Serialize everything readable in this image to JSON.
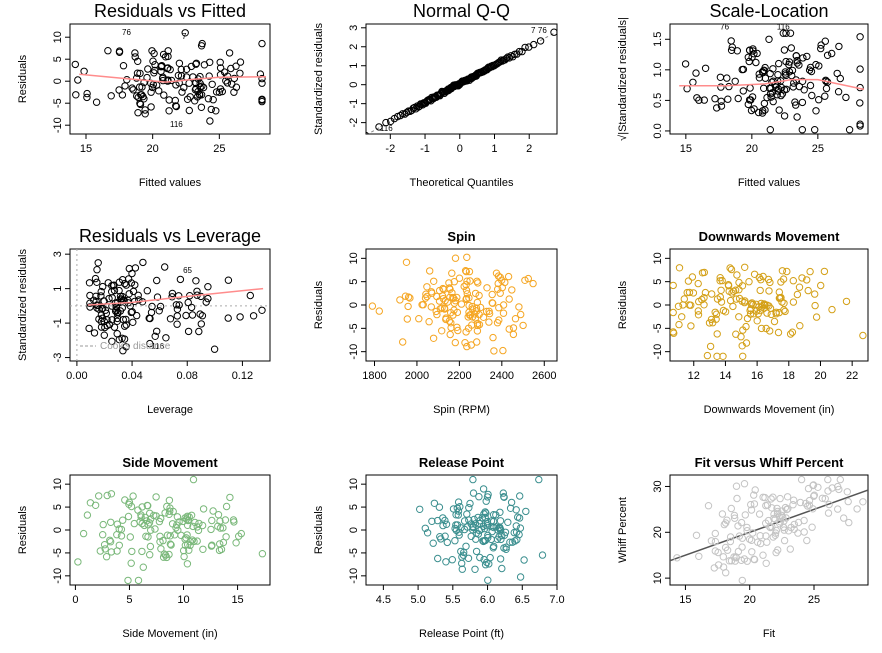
{
  "chart_data": [
    {
      "type": "scatter",
      "title": "Residuals vs Fitted",
      "xlabel": "Fitted values",
      "ylabel": "Residuals",
      "xlim": [
        13.8,
        28.8
      ],
      "ylim": [
        -12,
        13
      ],
      "xticks": [
        15,
        20,
        25
      ],
      "yticks": [
        -10,
        -5,
        0,
        5,
        10
      ],
      "point_color": "#000000",
      "smooth_color": "#ff8c8c",
      "smooth": {
        "x": [
          14.5,
          18,
          21,
          23,
          25,
          28.5
        ],
        "y": [
          1.6,
          0.6,
          -0.2,
          0.4,
          0.9,
          1.0
        ]
      },
      "annotations": [
        {
          "x": 17.7,
          "y": 10.5,
          "text": "76"
        },
        {
          "x": 22.2,
          "y": 9.6,
          "text": "7"
        },
        {
          "x": 21.3,
          "y": -10.4,
          "text": "116"
        }
      ],
      "gen": {
        "n": 150,
        "seed": 11,
        "xmean": 21.8,
        "xsd": 3.0,
        "ysd": 4.3,
        "xlo": 14.2,
        "xhi": 28.2,
        "ylo": -11,
        "yhi": 11
      }
    },
    {
      "type": "scatter",
      "title": "Normal Q-Q",
      "xlabel": "Theoretical Quantiles",
      "ylabel": "Standardized residuals",
      "xlim": [
        -2.7,
        2.8
      ],
      "ylim": [
        -2.6,
        3.2
      ],
      "xticks": [
        -2,
        -1,
        0,
        1,
        2
      ],
      "yticks": [
        -2,
        -1,
        0,
        1,
        2,
        3
      ],
      "point_color": "#000000",
      "refline": {
        "x": [
          -2.7,
          2.8
        ],
        "y": [
          -2.65,
          2.8
        ],
        "dash": true
      },
      "annotations": [
        {
          "x": 2.05,
          "y": 2.72,
          "text": "7"
        },
        {
          "x": 2.25,
          "y": 2.72,
          "text": "76"
        },
        {
          "x": -2.3,
          "y": -2.45,
          "text": "116"
        }
      ],
      "gen": {
        "n": 150,
        "seed": 3,
        "qq": true
      }
    },
    {
      "type": "scatter",
      "title": "Scale-Location",
      "xlabel": "Fitted values",
      "ylabel": "√|Standardized residuals|",
      "xlim": [
        13.8,
        28.8
      ],
      "ylim": [
        -0.05,
        1.75
      ],
      "xticks": [
        15,
        20,
        25
      ],
      "yticks": [
        0.0,
        0.5,
        1.0,
        1.5
      ],
      "point_color": "#000000",
      "smooth_color": "#ff8c8c",
      "smooth": {
        "x": [
          14.5,
          18,
          21,
          23,
          25,
          28.5
        ],
        "y": [
          0.74,
          0.74,
          0.77,
          0.84,
          0.84,
          0.68
        ]
      },
      "annotations": [
        {
          "x": 17.6,
          "y": 1.66,
          "text": "76"
        },
        {
          "x": 21.9,
          "y": 1.66,
          "text": "116"
        }
      ],
      "gen": {
        "n": 150,
        "seed": 17,
        "xmean": 21.8,
        "xsd": 3.0,
        "ymean": 0.8,
        "ysd": 0.35,
        "xlo": 14.2,
        "xhi": 28.2,
        "ylo": 0.02,
        "yhi": 1.6
      }
    },
    {
      "type": "scatter",
      "title": "Residuals vs Leverage",
      "xlabel": "Leverage",
      "ylabel": "Standardized residuals",
      "xlim": [
        -0.005,
        0.14
      ],
      "ylim": [
        -3.2,
        3.3
      ],
      "xticks": [
        0.0,
        0.04,
        0.08,
        0.12
      ],
      "yticks": [
        -3,
        -1,
        1,
        3
      ],
      "point_color": "#000000",
      "smooth_color": "#ff8c8c",
      "smooth": {
        "x": [
          0.008,
          0.04,
          0.08,
          0.135
        ],
        "y": [
          0.05,
          0.2,
          0.55,
          1.0
        ]
      },
      "annotations": [
        {
          "x": 0.077,
          "y": 1.9,
          "text": "65"
        },
        {
          "x": 0.054,
          "y": -2.5,
          "text": "116"
        }
      ],
      "legend": {
        "text": "Cook's distance",
        "position": "bottom-left"
      },
      "gen": {
        "n": 150,
        "seed": 23,
        "lev": true
      }
    },
    {
      "type": "scatter",
      "title": "Spin",
      "xlabel": "Spin (RPM)",
      "ylabel": "Residuals",
      "xlim": [
        1760,
        2660
      ],
      "ylim": [
        -12,
        12
      ],
      "xticks": [
        1800,
        2000,
        2200,
        2400,
        2600
      ],
      "yticks": [
        -10,
        -5,
        0,
        5,
        10
      ],
      "point_color": "#f5a623",
      "gen": {
        "n": 150,
        "seed": 5,
        "xmean": 2260,
        "xsd": 150,
        "ysd": 4.3,
        "xlo": 1790,
        "xhi": 2650,
        "ylo": -11,
        "yhi": 11
      }
    },
    {
      "type": "scatter",
      "title": "Downwards Movement",
      "xlabel": "Downwards Movement (in)",
      "ylabel": "Residuals",
      "xlim": [
        10.5,
        23
      ],
      "ylim": [
        -12,
        12
      ],
      "xticks": [
        12,
        14,
        16,
        18,
        20,
        22
      ],
      "yticks": [
        -10,
        -5,
        0,
        5,
        10
      ],
      "point_color": "#d4a017",
      "gen": {
        "n": 150,
        "seed": 7,
        "xmean": 15.2,
        "xsd": 2.4,
        "ysd": 4.3,
        "xlo": 10.7,
        "xhi": 22.8,
        "ylo": -11,
        "yhi": 11
      }
    },
    {
      "type": "scatter",
      "title": "Side Movement",
      "xlabel": "Side Movement (in)",
      "ylabel": "Residuals",
      "xlim": [
        -0.5,
        18
      ],
      "ylim": [
        -12,
        12
      ],
      "xticks": [
        0,
        5,
        10,
        15
      ],
      "yticks": [
        -10,
        -5,
        0,
        5,
        10
      ],
      "point_color": "#7ab87a",
      "gen": {
        "n": 150,
        "seed": 9,
        "xmean": 8,
        "xsd": 3.7,
        "ysd": 4.3,
        "xlo": 0,
        "xhi": 17.5,
        "ylo": -11,
        "yhi": 11
      }
    },
    {
      "type": "scatter",
      "title": "Release Point",
      "xlabel": "Release Point (ft)",
      "ylabel": "Residuals",
      "xlim": [
        4.25,
        7.0
      ],
      "ylim": [
        -12,
        12
      ],
      "xticks": [
        4.5,
        5.0,
        5.5,
        6.0,
        6.5,
        7.0
      ],
      "yticks": [
        -10,
        -5,
        0,
        5,
        10
      ],
      "point_color": "#3b8f8f",
      "gen": {
        "n": 150,
        "seed": 13,
        "xmean": 5.9,
        "xsd": 0.38,
        "ysd": 4.3,
        "xlo": 4.4,
        "xhi": 6.95,
        "ylo": -11,
        "yhi": 11
      }
    },
    {
      "type": "scatter",
      "title": "Fit versus Whiff Percent",
      "xlabel": "Fit",
      "ylabel": "Whiff Percent",
      "xlim": [
        13.8,
        29.2
      ],
      "ylim": [
        8.5,
        32.5
      ],
      "xticks": [
        15,
        20,
        25
      ],
      "yticks": [
        10,
        20,
        30
      ],
      "point_color": "#c4c4c4",
      "refline": {
        "x": [
          13.8,
          29.2
        ],
        "y": [
          13.8,
          29.2
        ],
        "color": "#555555"
      },
      "gen": {
        "n": 150,
        "seed": 19,
        "fit": true
      }
    }
  ]
}
